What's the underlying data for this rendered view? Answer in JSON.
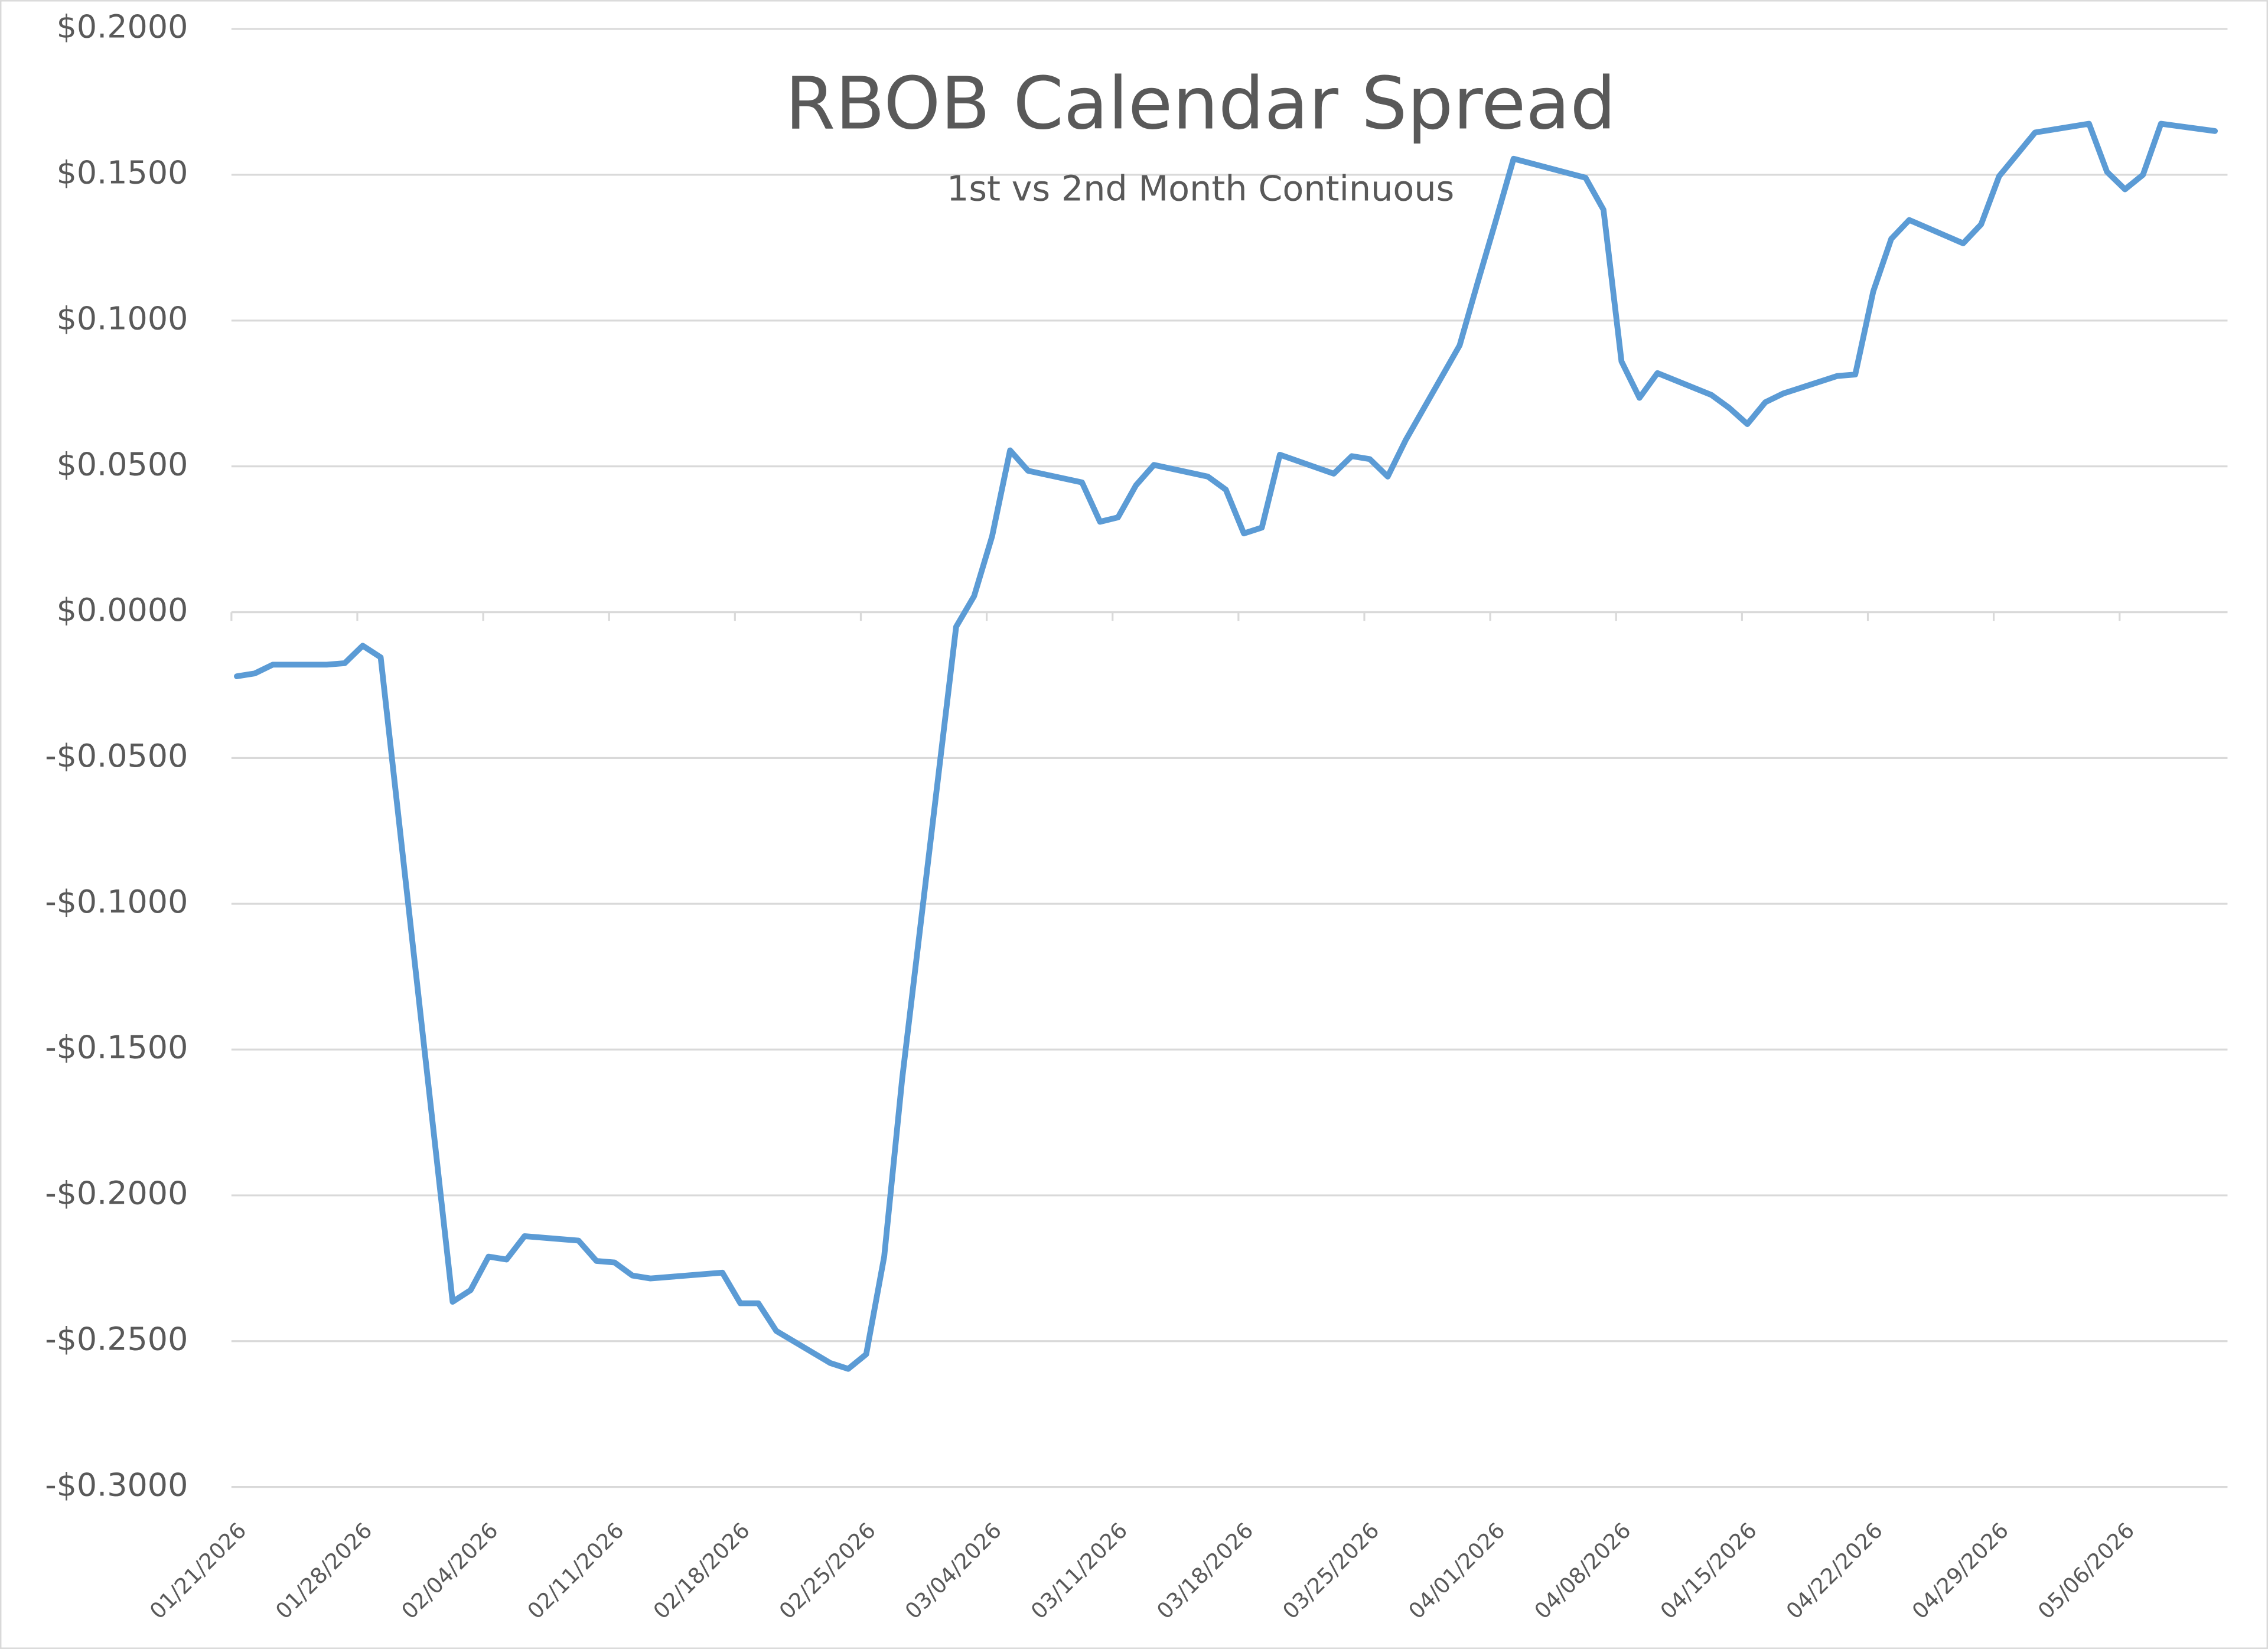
{
  "chart_data": {
    "type": "line",
    "title": "RBOB Calendar Spread",
    "subtitle": "1st vs 2nd Month Continuous",
    "x": [
      "01/21/2026",
      "01/22/2026",
      "01/23/2026",
      "01/26/2026",
      "01/27/2026",
      "01/28/2026",
      "01/29/2026",
      "02/02/2026",
      "02/03/2026",
      "02/04/2026",
      "02/05/2026",
      "02/06/2026",
      "02/09/2026",
      "02/10/2026",
      "02/11/2026",
      "02/12/2026",
      "02/13/2026",
      "02/17/2026",
      "02/18/2026",
      "02/19/2026",
      "02/20/2026",
      "02/23/2026",
      "02/24/2026",
      "02/25/2026",
      "02/26/2026",
      "02/27/2026",
      "03/02/2026",
      "03/03/2026",
      "03/04/2026",
      "03/05/2026",
      "03/06/2026",
      "03/09/2026",
      "03/10/2026",
      "03/11/2026",
      "03/12/2026",
      "03/13/2026",
      "03/16/2026",
      "03/17/2026",
      "03/18/2026",
      "03/19/2026",
      "03/20/2026",
      "03/23/2026",
      "03/24/2026",
      "03/25/2026",
      "03/26/2026",
      "03/27/2026",
      "03/30/2026",
      "03/31/2026",
      "04/01/2026",
      "04/02/2026",
      "04/06/2026",
      "04/07/2026",
      "04/08/2026",
      "04/09/2026",
      "04/10/2026",
      "04/13/2026",
      "04/14/2026",
      "04/15/2026",
      "04/16/2026",
      "04/17/2026",
      "04/20/2026",
      "04/21/2026",
      "04/22/2026",
      "04/23/2026",
      "04/24/2026",
      "04/27/2026",
      "04/28/2026",
      "04/29/2026",
      "04/30/2026",
      "05/01/2026",
      "05/04/2026",
      "05/05/2026",
      "05/06/2026",
      "05/07/2026",
      "05/08/2026",
      "05/11/2026"
    ],
    "series": [
      {
        "color": "#5b9bd5",
        "values": [
          -0.022,
          -0.021,
          -0.018,
          -0.018,
          -0.0175,
          -0.0115,
          -0.0155,
          -0.2365,
          -0.2325,
          -0.221,
          -0.222,
          -0.214,
          -0.2155,
          -0.2225,
          -0.223,
          -0.2275,
          -0.2285,
          -0.2265,
          -0.237,
          -0.237,
          -0.2465,
          -0.2575,
          -0.2595,
          -0.2545,
          -0.221,
          -0.16,
          -0.005,
          0.0055,
          0.026,
          0.0555,
          0.0485,
          0.0445,
          0.031,
          0.0325,
          0.0435,
          0.0505,
          0.0465,
          0.042,
          0.027,
          0.029,
          0.054,
          0.0475,
          0.0535,
          0.0525,
          0.0465,
          0.059,
          0.0915,
          0.113,
          0.134,
          0.1555,
          0.149,
          0.138,
          0.086,
          0.0735,
          0.082,
          0.0745,
          0.07,
          0.0645,
          0.072,
          0.075,
          0.081,
          0.0815,
          0.11,
          0.128,
          0.1345,
          0.1265,
          0.133,
          0.1495,
          0.157,
          0.1645,
          0.1675,
          0.151,
          0.145,
          0.15,
          0.1675,
          0.165
        ]
      }
    ],
    "xlim": [
      "01/21/2026",
      "05/12/2026"
    ],
    "xticks": [
      "01/21/2026",
      "01/28/2026",
      "02/04/2026",
      "02/11/2026",
      "02/18/2026",
      "02/25/2026",
      "03/04/2026",
      "03/11/2026",
      "03/18/2026",
      "03/25/2026",
      "04/01/2026",
      "04/08/2026",
      "04/15/2026",
      "04/22/2026",
      "04/29/2026",
      "05/06/2026"
    ],
    "ylim": [
      -0.3,
      0.2
    ],
    "yticks": [
      {
        "value": -0.3,
        "label": "-$0.3000"
      },
      {
        "value": -0.25,
        "label": "-$0.2500"
      },
      {
        "value": -0.2,
        "label": "-$0.2000"
      },
      {
        "value": -0.15,
        "label": "-$0.1500"
      },
      {
        "value": -0.1,
        "label": "-$0.1000"
      },
      {
        "value": -0.05,
        "label": "-$0.0500"
      },
      {
        "value": 0,
        "label": "$0.0000"
      },
      {
        "value": 0.05,
        "label": "$0.0500"
      },
      {
        "value": 0.1,
        "label": "$0.1000"
      },
      {
        "value": 0.15,
        "label": "$0.1500"
      },
      {
        "value": 0.2,
        "label": "$0.2000"
      }
    ],
    "grid": true
  }
}
